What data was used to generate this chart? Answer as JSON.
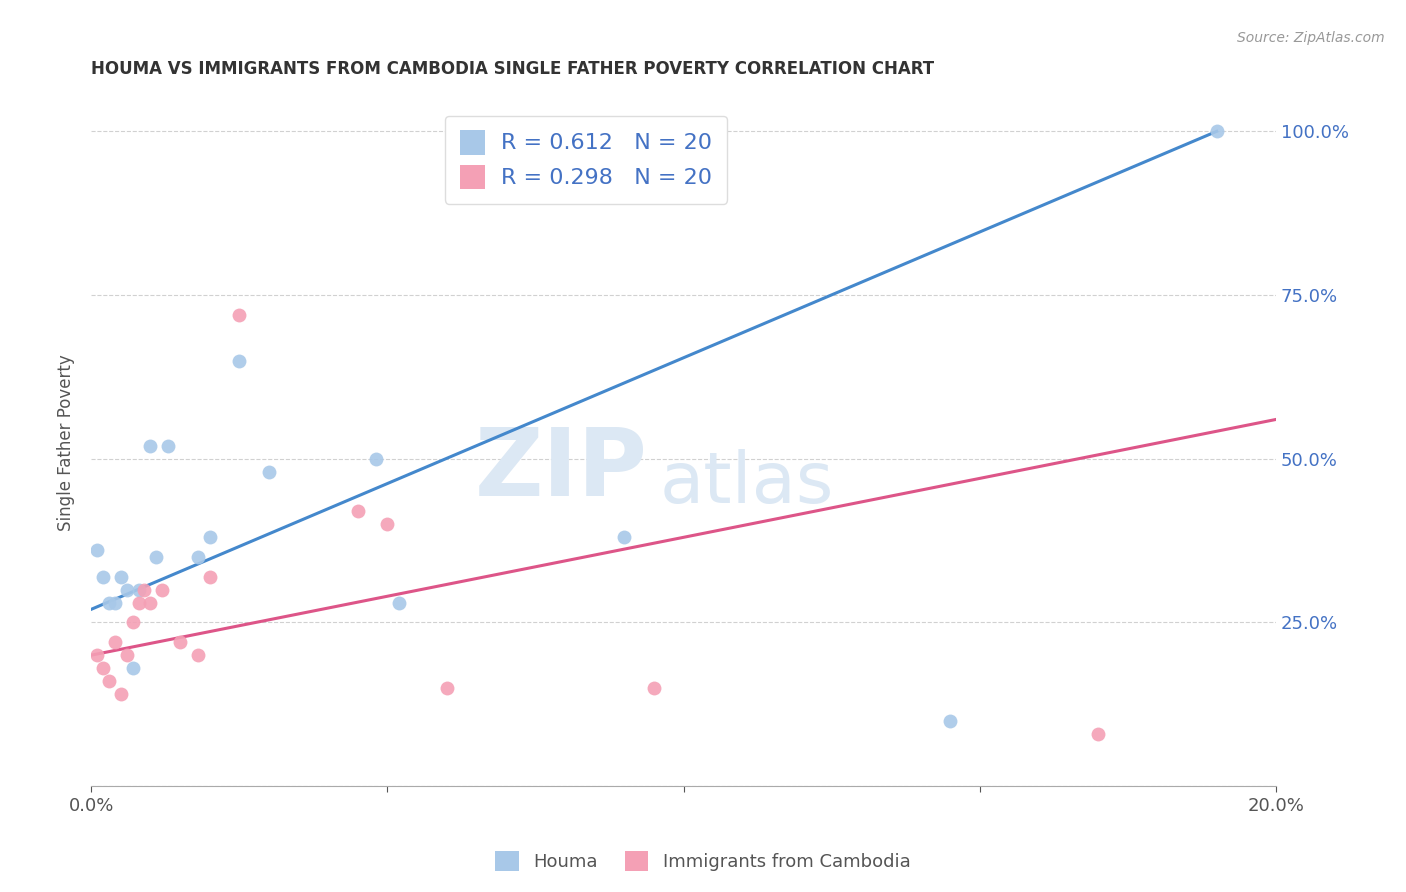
{
  "title": "HOUMA VS IMMIGRANTS FROM CAMBODIA SINGLE FATHER POVERTY CORRELATION CHART",
  "source": "Source: ZipAtlas.com",
  "ylabel": "Single Father Poverty",
  "x_min": 0.0,
  "x_max": 0.2,
  "y_min": 0.0,
  "y_max": 1.05,
  "houma_x": [
    0.001,
    0.002,
    0.003,
    0.004,
    0.005,
    0.006,
    0.007,
    0.008,
    0.01,
    0.011,
    0.013,
    0.018,
    0.02,
    0.025,
    0.03,
    0.048,
    0.052,
    0.09,
    0.145,
    0.19
  ],
  "houma_y": [
    0.36,
    0.32,
    0.28,
    0.28,
    0.32,
    0.3,
    0.18,
    0.3,
    0.52,
    0.35,
    0.52,
    0.35,
    0.38,
    0.65,
    0.48,
    0.5,
    0.28,
    0.38,
    0.1,
    1.0
  ],
  "cambodia_x": [
    0.001,
    0.002,
    0.003,
    0.004,
    0.005,
    0.006,
    0.007,
    0.008,
    0.009,
    0.01,
    0.012,
    0.015,
    0.018,
    0.02,
    0.025,
    0.045,
    0.05,
    0.06,
    0.095,
    0.17
  ],
  "cambodia_y": [
    0.2,
    0.18,
    0.16,
    0.22,
    0.14,
    0.2,
    0.25,
    0.28,
    0.3,
    0.28,
    0.3,
    0.22,
    0.2,
    0.32,
    0.72,
    0.42,
    0.4,
    0.15,
    0.15,
    0.08
  ],
  "houma_R": "0.612",
  "houma_N": "20",
  "cambodia_R": "0.298",
  "cambodia_N": "20",
  "blue_color": "#a8c8e8",
  "pink_color": "#f4a0b5",
  "blue_line_color": "#4488cc",
  "pink_line_color": "#dd5588",
  "legend_text_color": "#4472c4",
  "title_color": "#333333",
  "axis_label_color": "#555555",
  "right_tick_color": "#4472c4",
  "grid_color": "#cccccc",
  "background_color": "#ffffff",
  "watermark_zip": "ZIP",
  "watermark_atlas": "atlas",
  "watermark_color": "#dce8f4"
}
